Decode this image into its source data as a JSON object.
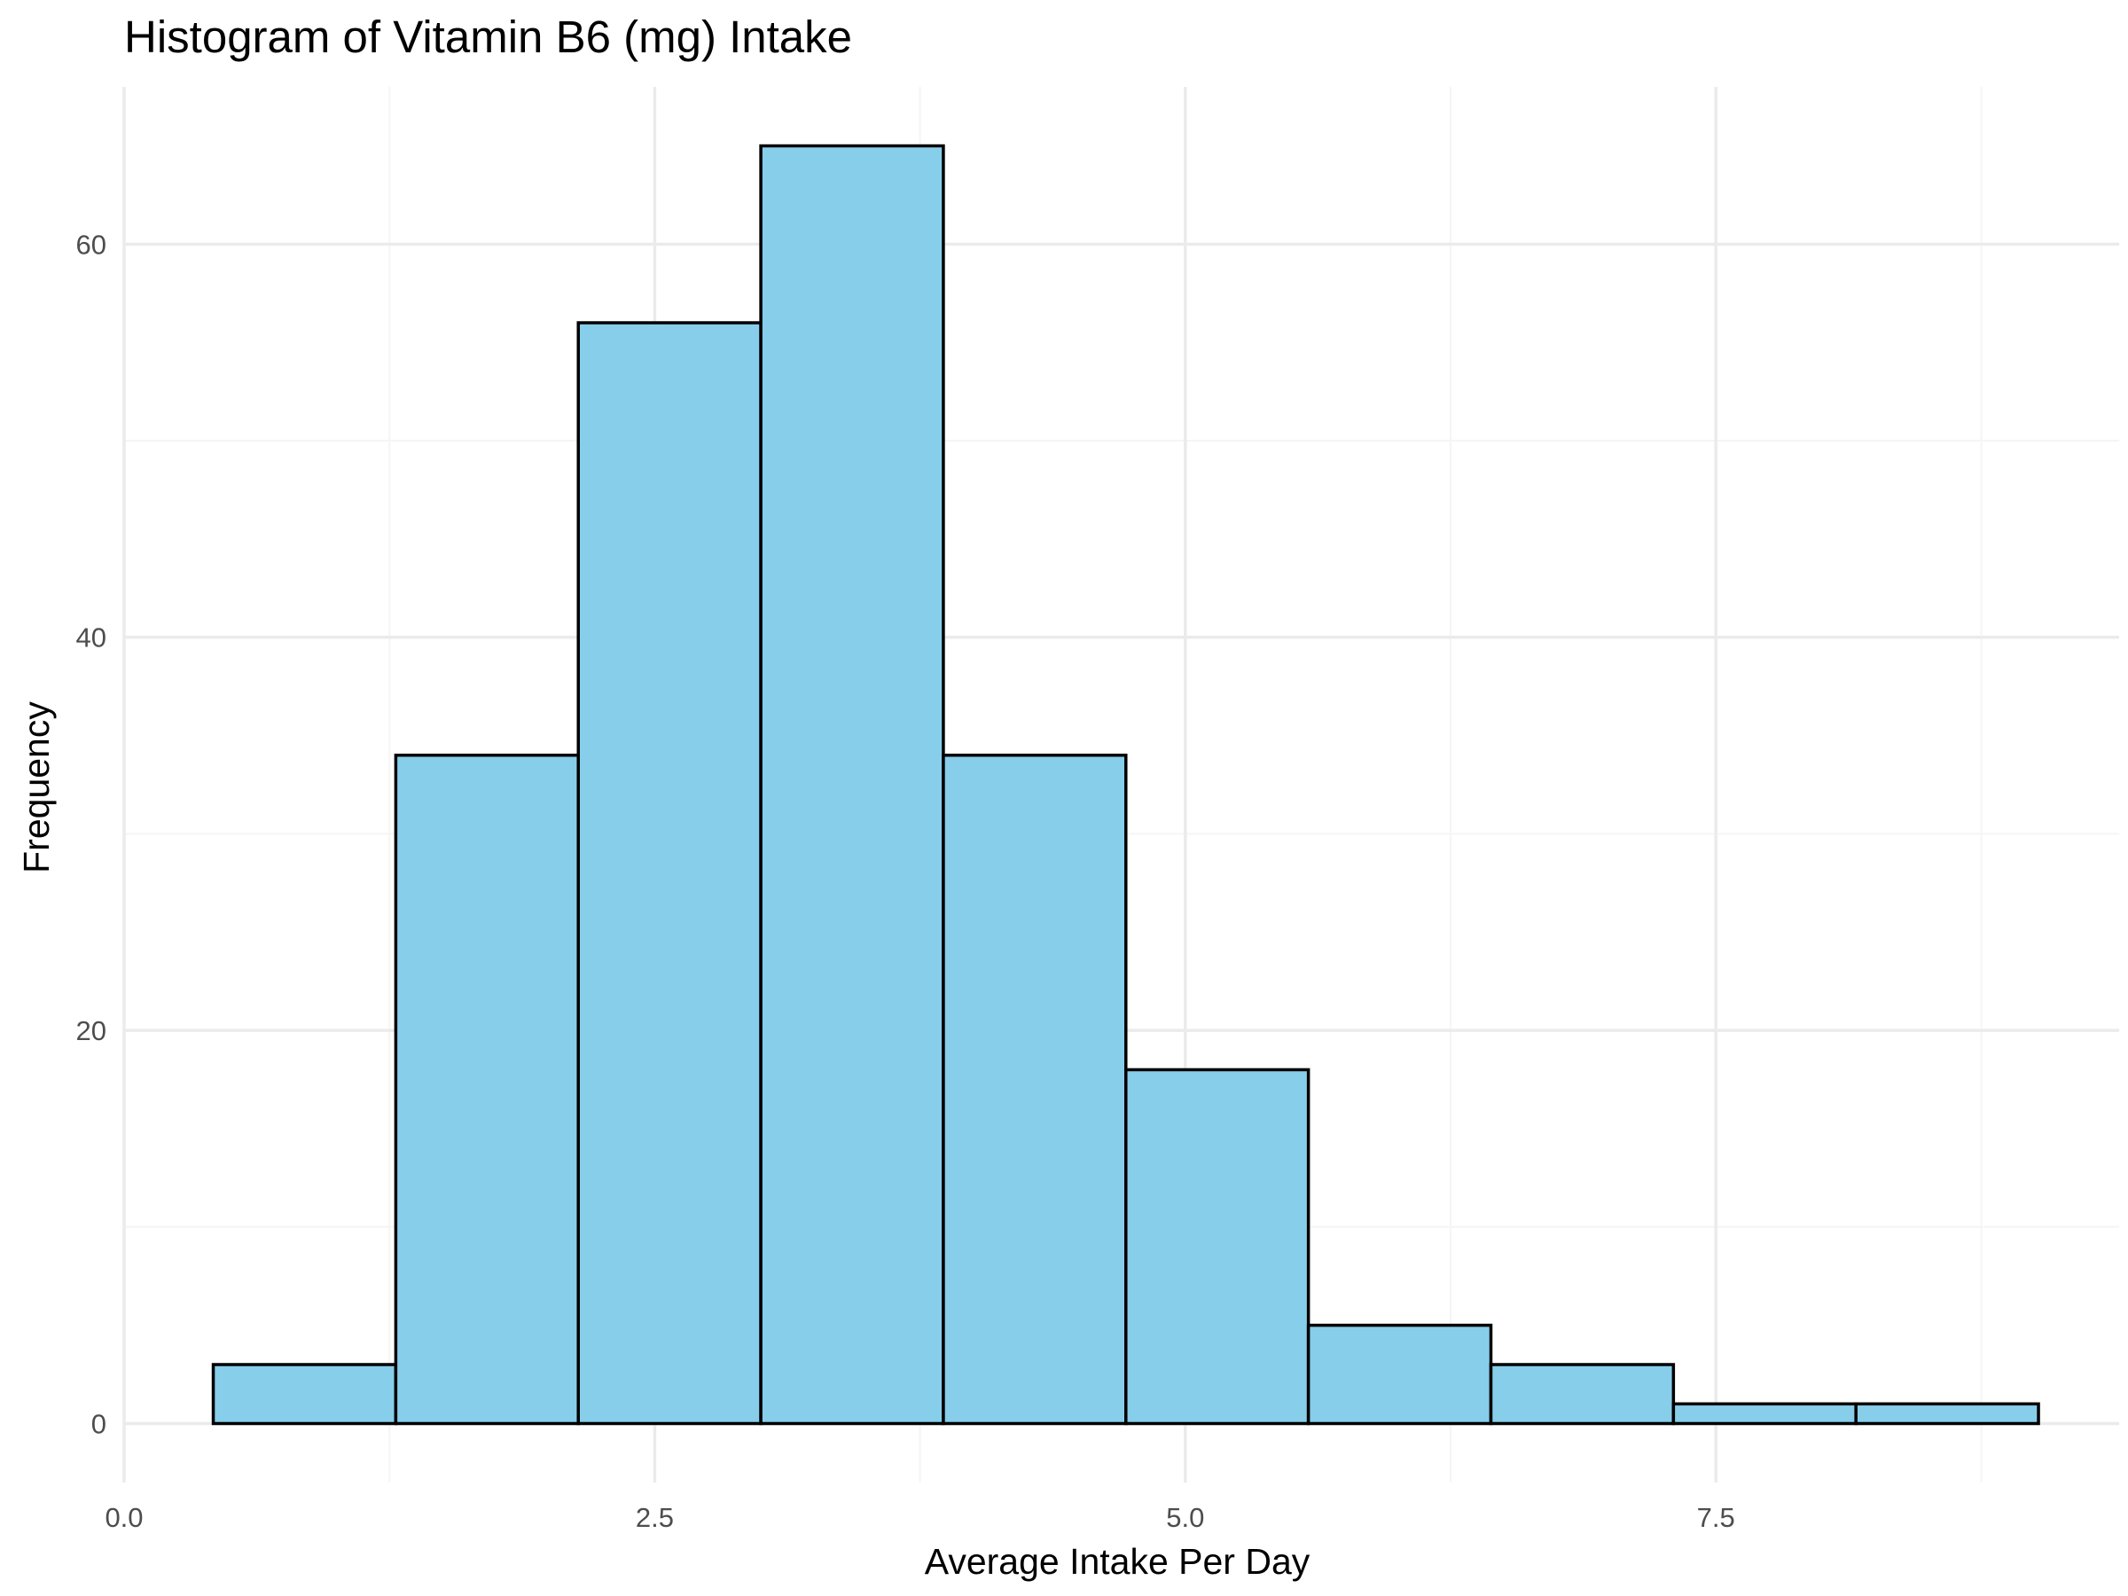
{
  "chart_data": {
    "type": "bar",
    "title": "Histogram of Vitamin B6 (mg) Intake",
    "xlabel": "Average Intake Per Day",
    "ylabel": "Frequency",
    "xlim": [
      0,
      9.4
    ],
    "ylim": [
      -3,
      68
    ],
    "x_ticks": [
      0.0,
      2.5,
      5.0,
      7.5
    ],
    "x_tick_labels": [
      "0.0",
      "2.5",
      "5.0",
      "7.5"
    ],
    "x_minor_ticks": [
      1.25,
      3.75,
      6.25,
      8.75
    ],
    "y_ticks": [
      0,
      20,
      40,
      60
    ],
    "y_tick_labels": [
      "0",
      "20",
      "40",
      "60"
    ],
    "y_minor_ticks": [
      10,
      30,
      50
    ],
    "grid": true,
    "legend": "none",
    "bins": [
      {
        "x0": 0.42,
        "x1": 1.28,
        "count": 3
      },
      {
        "x0": 1.28,
        "x1": 2.14,
        "count": 34
      },
      {
        "x0": 2.14,
        "x1": 3.0,
        "count": 56
      },
      {
        "x0": 3.0,
        "x1": 3.86,
        "count": 65
      },
      {
        "x0": 3.86,
        "x1": 4.72,
        "count": 34
      },
      {
        "x0": 4.72,
        "x1": 5.58,
        "count": 18
      },
      {
        "x0": 5.58,
        "x1": 6.44,
        "count": 5
      },
      {
        "x0": 6.44,
        "x1": 7.3,
        "count": 3
      },
      {
        "x0": 7.3,
        "x1": 8.16,
        "count": 1
      },
      {
        "x0": 8.16,
        "x1": 9.02,
        "count": 1
      }
    ],
    "colors": {
      "bar_fill": "#87ceeb",
      "bar_stroke": "#000000",
      "grid_major": "#ebebeb",
      "grid_minor": "#f5f5f5",
      "tick_text": "#4d4d4d"
    }
  }
}
